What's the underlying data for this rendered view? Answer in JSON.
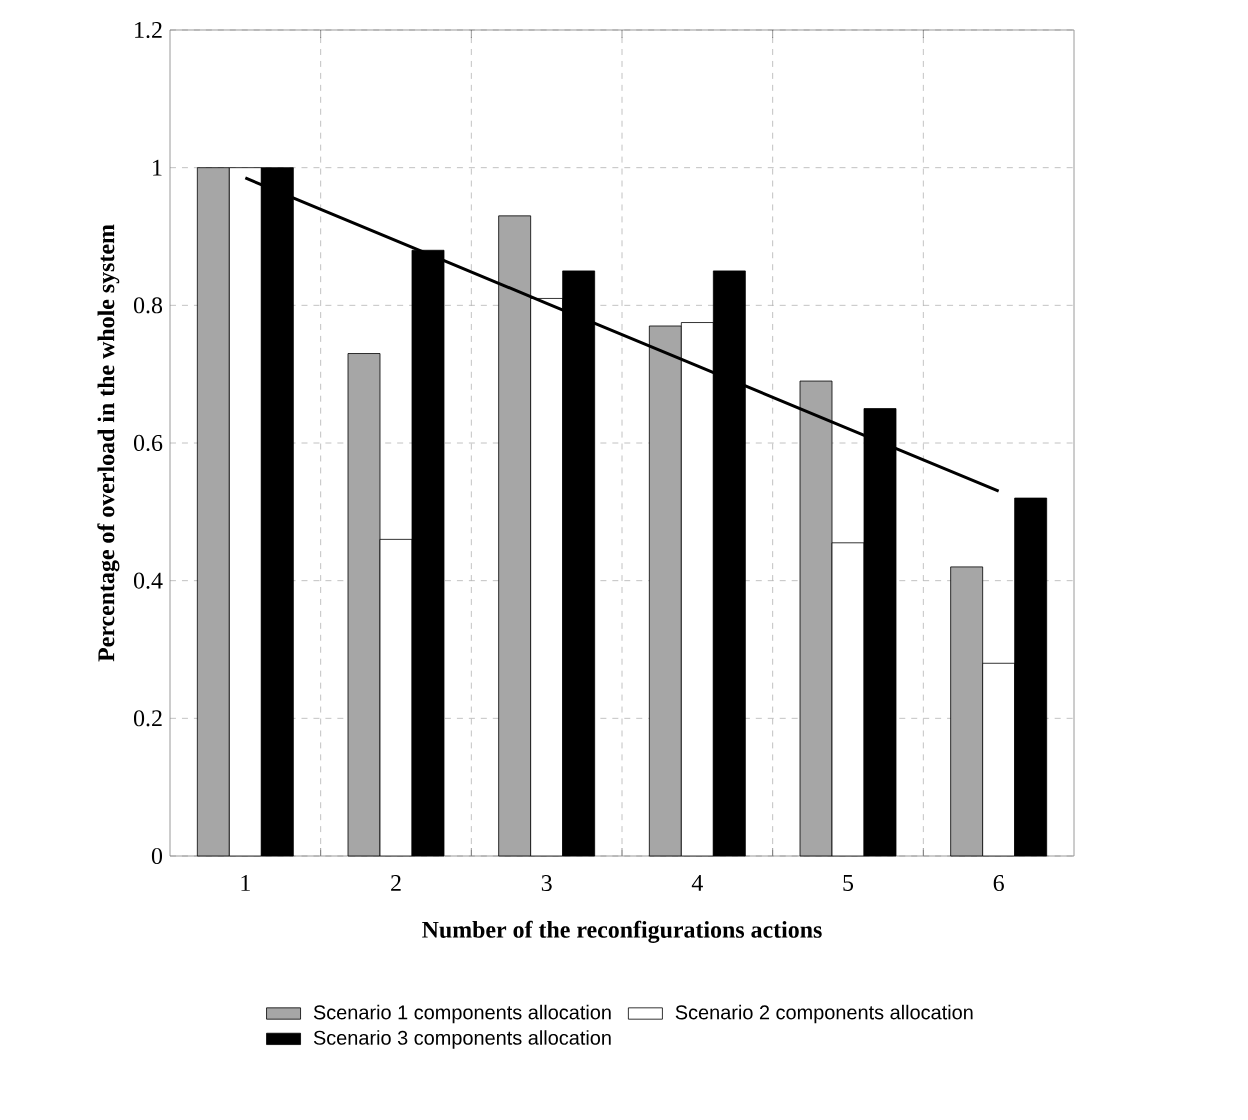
{
  "chart_data": {
    "type": "bar",
    "xlabel": "Number of the reconfigurations actions",
    "ylabel": "Percentage of overload in the whole system",
    "categories": [
      "1",
      "2",
      "3",
      "4",
      "5",
      "6"
    ],
    "series": [
      {
        "name": "Scenario 1 components allocation",
        "color": "#a6a6a6",
        "values": [
          1,
          0.73,
          0.93,
          0.77,
          0.69,
          0.42
        ]
      },
      {
        "name": "Scenario 2 components allocation",
        "color": "#ffffff",
        "values": [
          1,
          0.46,
          0.81,
          0.775,
          0.455,
          0.28
        ]
      },
      {
        "name": "Scenario 3 components allocation",
        "color": "#000000",
        "values": [
          1,
          0.88,
          0.85,
          0.85,
          0.65,
          0.52
        ]
      },
      {
        "type": "line",
        "color": "#000000",
        "values": [
          0.985,
          0.894,
          0.803,
          0.712,
          0.621,
          0.53
        ]
      }
    ],
    "ylim": [
      0,
      1.2
    ],
    "yticks": [
      0,
      0.2,
      0.4,
      0.6,
      0.8,
      1,
      1.2
    ],
    "grid": true,
    "legend": "bottom"
  }
}
